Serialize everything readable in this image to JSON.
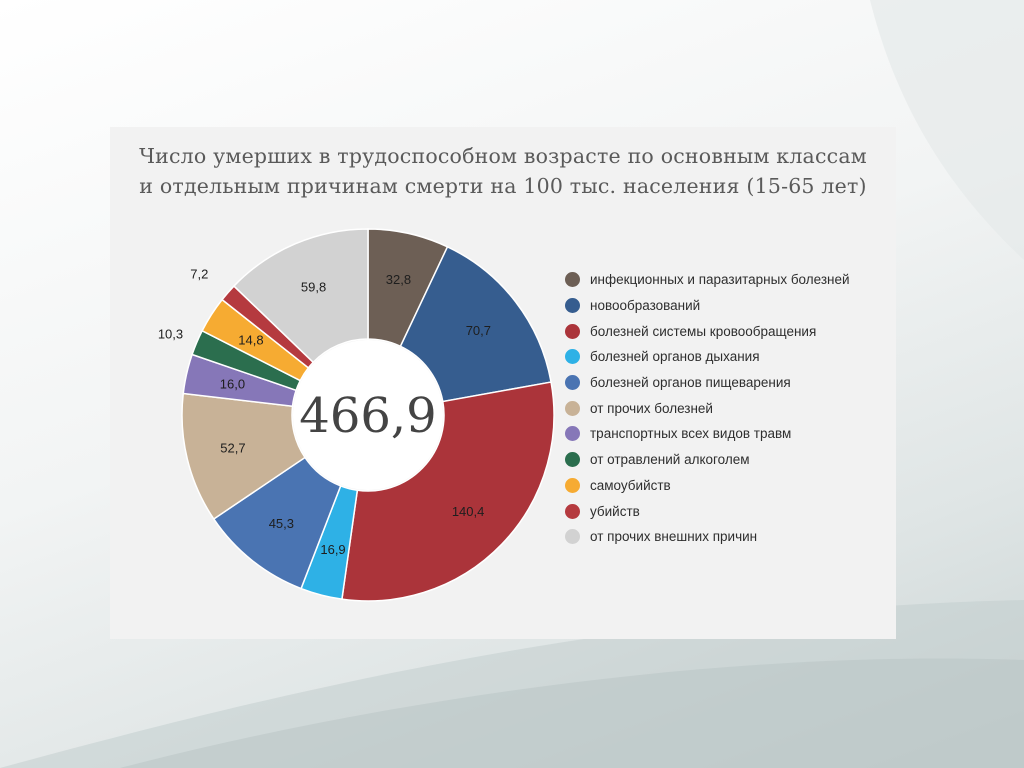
{
  "chart_data": {
    "type": "pie",
    "title": "Число умерших  в трудоспособном возрасте по основным классам и отдельным причинам смерти на 100 тыс. населения (15-65 лет)",
    "title_lines": [
      "Число умерших  в трудоспособном возрасте по основным классам",
      "и отдельным причинам смерти на 100 тыс. населения (15-65 лет)"
    ],
    "center_label": "466,9",
    "donut": true,
    "legend_position": "right",
    "slices": [
      {
        "label": "инфекционных и паразитарных болезней",
        "value": 32.8,
        "value_label": "32,8",
        "color": "#6d5f55"
      },
      {
        "label": "новообразований",
        "value": 70.7,
        "value_label": "70,7",
        "color": "#365d8f"
      },
      {
        "label": "болезней системы кровообращения",
        "value": 140.4,
        "value_label": "140,4",
        "color": "#ab343a"
      },
      {
        "label": "болезней органов дыхания",
        "value": 16.9,
        "value_label": "16,9",
        "color": "#2eb1e6"
      },
      {
        "label": "болезней органов пищеварения",
        "value": 45.3,
        "value_label": "45,3",
        "color": "#4a74b2"
      },
      {
        "label": "от прочих болезней",
        "value": 52.7,
        "value_label": "52,7",
        "color": "#c8b297"
      },
      {
        "label": "транспортных всех видов травм",
        "value": 16.0,
        "value_label": "16,0",
        "color": "#8677b8"
      },
      {
        "label": "от отравлений алкоголем",
        "value": 10.3,
        "value_label": "10,3",
        "color": "#2b6e4e"
      },
      {
        "label": "самоубийств",
        "value": 14.8,
        "value_label": "14,8",
        "color": "#f6ab32"
      },
      {
        "label": "убийств",
        "value": 7.2,
        "value_label": "7,2",
        "color": "#b53a3f"
      },
      {
        "label": "от прочих внешних причин",
        "value": 59.8,
        "value_label": "59,8",
        "color": "#d2d2d2"
      }
    ]
  }
}
